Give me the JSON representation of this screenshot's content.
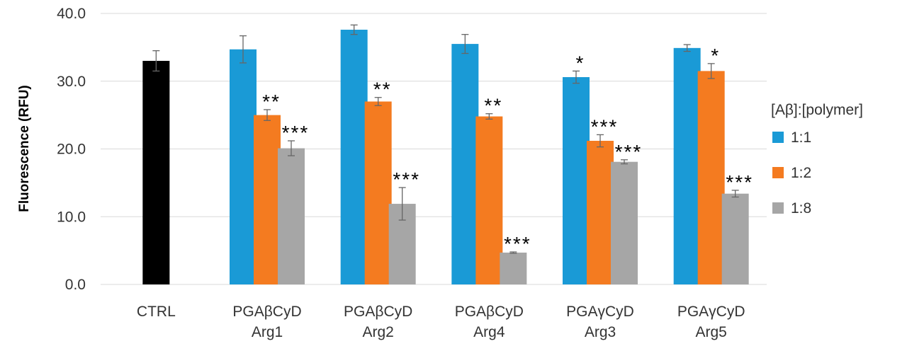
{
  "chart_data": {
    "type": "bar",
    "title": "",
    "xlabel": "",
    "ylabel": "Fluorescence (RFU)",
    "ylim": [
      0,
      40
    ],
    "yticks": [
      "0.0",
      "10.0",
      "20.0",
      "30.0",
      "40.0"
    ],
    "grid": true,
    "categories": [
      [
        "CTRL"
      ],
      [
        "PGAβCyD",
        "Arg1"
      ],
      [
        "PGAβCyD",
        "Arg2"
      ],
      [
        "PGAβCyD",
        "Arg4"
      ],
      [
        "PGAγCyD",
        "Arg3"
      ],
      [
        "PGAγCyD",
        "Arg5"
      ]
    ],
    "control": {
      "name": "CTRL",
      "value": 33.0,
      "error": 1.5,
      "color": "#000000"
    },
    "legend": {
      "title": "[Aβ]:[polymer]",
      "position": "right"
    },
    "series": [
      {
        "name": "1:1",
        "color": "#1a9ad6",
        "values": [
          null,
          34.7,
          37.6,
          35.5,
          30.6,
          34.9
        ],
        "errors": [
          null,
          2.0,
          0.7,
          1.4,
          0.9,
          0.5
        ],
        "significance": [
          null,
          "",
          "",
          "",
          "*",
          ""
        ]
      },
      {
        "name": "1:2",
        "color": "#f47b20",
        "values": [
          null,
          25.0,
          27.0,
          24.8,
          21.2,
          31.5
        ],
        "errors": [
          null,
          0.8,
          0.6,
          0.4,
          0.9,
          1.1
        ],
        "significance": [
          null,
          "**",
          "**",
          "**",
          "***",
          "*"
        ]
      },
      {
        "name": "1:8",
        "color": "#a6a6a6",
        "values": [
          null,
          20.1,
          11.9,
          4.7,
          18.1,
          13.4
        ],
        "errors": [
          null,
          1.1,
          2.4,
          0.1,
          0.3,
          0.5
        ],
        "significance": [
          null,
          "***",
          "***",
          "***",
          "***",
          "***"
        ]
      }
    ]
  }
}
